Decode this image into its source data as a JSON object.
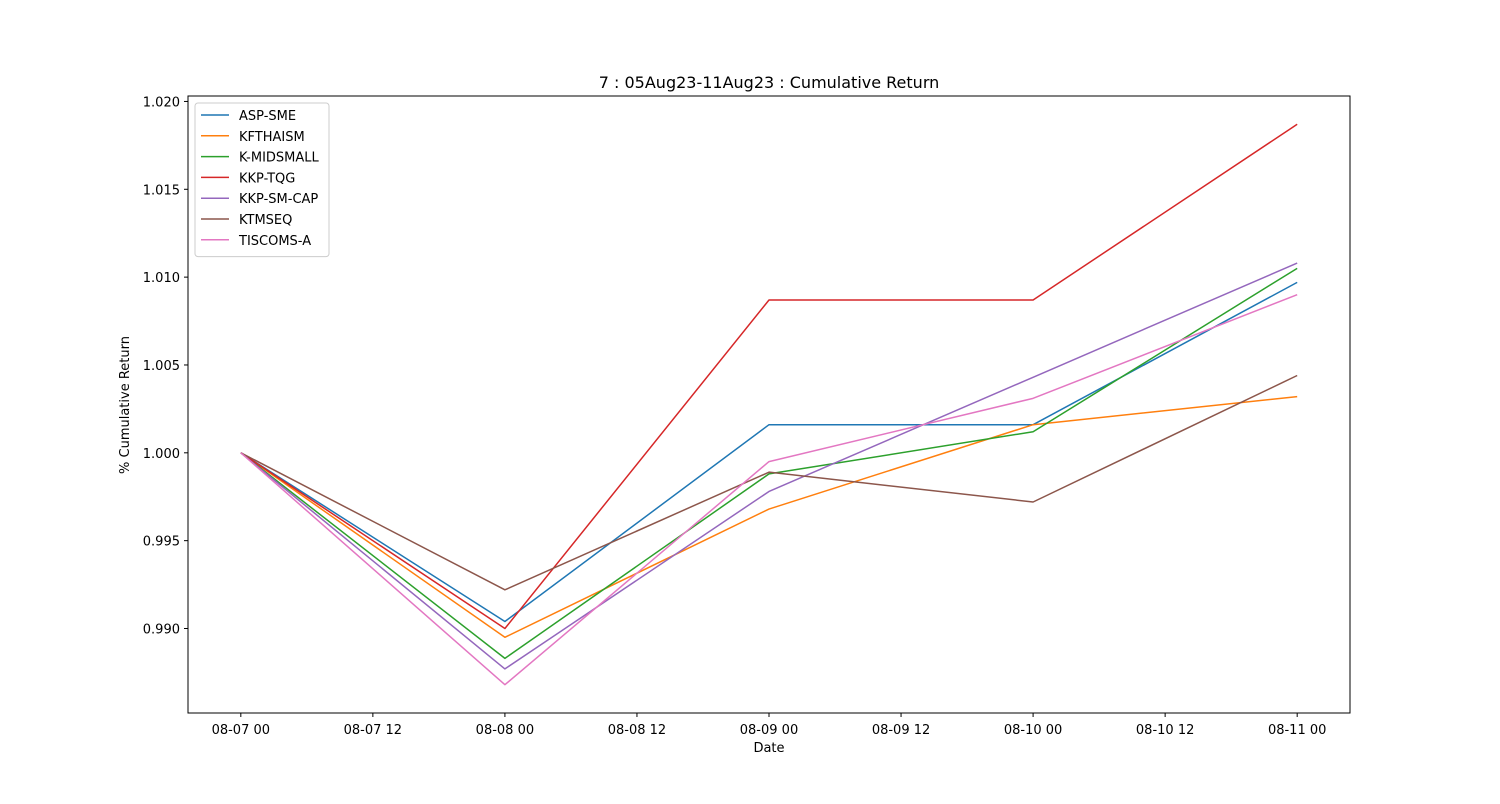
{
  "chart_data": {
    "type": "line",
    "title": "7 : 05Aug23-11Aug23 : Cumulative Return",
    "xlabel": "Date",
    "ylabel": "% Cumulative Return",
    "x": [
      "2023-08-07",
      "2023-08-08",
      "2023-08-09",
      "2023-08-10",
      "2023-08-11"
    ],
    "xlim": [
      "2023-08-06 19:12",
      "2023-08-11 04:48"
    ],
    "x_ticks": [
      "08-07 00",
      "08-07 12",
      "08-08 00",
      "08-08 12",
      "08-09 00",
      "08-09 12",
      "08-10 00",
      "08-10 12",
      "08-11 00"
    ],
    "ylim": [
      0.98519,
      1.02031
    ],
    "y_ticks": [
      0.99,
      0.995,
      1.0,
      1.005,
      1.01,
      1.015,
      1.02
    ],
    "y_tick_labels": [
      "0.990",
      "0.995",
      "1.000",
      "1.005",
      "1.010",
      "1.015",
      "1.020"
    ],
    "grid": false,
    "legend_position": "top-left",
    "series": [
      {
        "name": "ASP-SME",
        "color": "#1f77b4",
        "values": [
          1.0,
          0.9904,
          1.0016,
          1.0016,
          1.0097
        ]
      },
      {
        "name": "KFTHAISM",
        "color": "#ff7f0e",
        "values": [
          1.0,
          0.9895,
          0.9968,
          1.0016,
          1.0032
        ]
      },
      {
        "name": "K-MIDSMALL",
        "color": "#2ca02c",
        "values": [
          1.0,
          0.9883,
          0.9988,
          1.0012,
          1.0105
        ]
      },
      {
        "name": "KKP-TQG",
        "color": "#d62728",
        "values": [
          1.0,
          0.99,
          1.0087,
          1.0087,
          1.0187
        ]
      },
      {
        "name": "KKP-SM-CAP",
        "color": "#9467bd",
        "values": [
          1.0,
          0.9877,
          0.9978,
          1.0043,
          1.0108
        ]
      },
      {
        "name": "KTMSEQ",
        "color": "#8c564b",
        "values": [
          1.0,
          0.9922,
          0.9989,
          0.9972,
          1.0044
        ]
      },
      {
        "name": "TISCOMS-A",
        "color": "#e377c2",
        "values": [
          1.0,
          0.9868,
          0.9995,
          1.0031,
          1.009
        ]
      }
    ]
  }
}
